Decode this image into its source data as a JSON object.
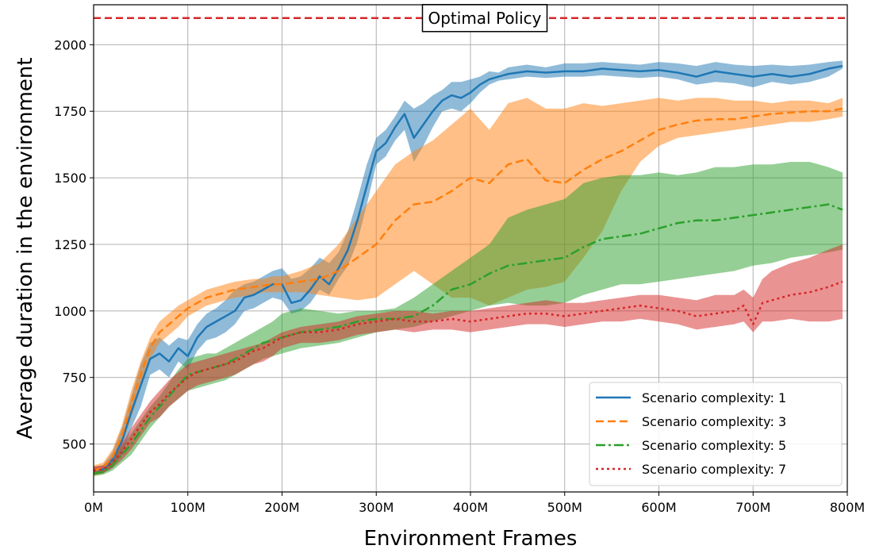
{
  "chart_data": {
    "type": "line",
    "title": "",
    "xlabel": "Environment Frames",
    "ylabel": "Average duration in the environment",
    "xlim": [
      0,
      800
    ],
    "ylim": [
      320,
      2150
    ],
    "x_ticks": [
      0,
      100,
      200,
      300,
      400,
      500,
      600,
      700,
      800
    ],
    "x_tick_labels": [
      "0M",
      "100M",
      "200M",
      "300M",
      "400M",
      "500M",
      "600M",
      "700M",
      "800M"
    ],
    "y_ticks": [
      500,
      750,
      1000,
      1250,
      1500,
      1750,
      2000
    ],
    "y_tick_labels": [
      "500",
      "750",
      "1000",
      "1250",
      "1500",
      "1750",
      "2000"
    ],
    "grid": true,
    "legend": "bottom-right",
    "reference_line": {
      "y": 2100,
      "label": "Optimal Policy",
      "color": "#d62728"
    },
    "series": [
      {
        "name": "Scenario complexity: 1",
        "color": "#1f77b4",
        "style": "solid",
        "x": [
          0,
          10,
          20,
          30,
          40,
          50,
          60,
          70,
          80,
          90,
          100,
          110,
          120,
          130,
          140,
          150,
          160,
          170,
          180,
          190,
          200,
          210,
          220,
          230,
          240,
          250,
          260,
          270,
          280,
          290,
          300,
          310,
          320,
          330,
          340,
          350,
          360,
          370,
          380,
          390,
          400,
          410,
          420,
          430,
          440,
          460,
          480,
          500,
          520,
          540,
          560,
          580,
          600,
          620,
          640,
          660,
          680,
          700,
          720,
          740,
          760,
          780,
          795
        ],
        "y": [
          400,
          405,
          440,
          510,
          620,
          720,
          820,
          840,
          810,
          860,
          830,
          900,
          940,
          960,
          980,
          1000,
          1050,
          1060,
          1080,
          1100,
          1100,
          1030,
          1040,
          1080,
          1130,
          1100,
          1160,
          1230,
          1340,
          1470,
          1600,
          1630,
          1690,
          1740,
          1650,
          1700,
          1750,
          1790,
          1810,
          1800,
          1820,
          1850,
          1870,
          1880,
          1890,
          1900,
          1895,
          1900,
          1900,
          1910,
          1905,
          1900,
          1905,
          1895,
          1880,
          1900,
          1890,
          1880,
          1890,
          1880,
          1890,
          1910,
          1920
        ],
        "upper": [
          415,
          420,
          470,
          560,
          680,
          800,
          880,
          900,
          870,
          900,
          890,
          950,
          990,
          1010,
          1040,
          1080,
          1100,
          1110,
          1130,
          1150,
          1160,
          1120,
          1130,
          1160,
          1200,
          1180,
          1220,
          1300,
          1420,
          1550,
          1650,
          1680,
          1730,
          1790,
          1760,
          1780,
          1810,
          1830,
          1860,
          1860,
          1870,
          1880,
          1900,
          1895,
          1915,
          1925,
          1915,
          1930,
          1930,
          1935,
          1930,
          1925,
          1935,
          1930,
          1920,
          1935,
          1925,
          1920,
          1925,
          1920,
          1925,
          1935,
          1940
        ],
        "lower": [
          385,
          390,
          410,
          460,
          560,
          640,
          760,
          780,
          750,
          810,
          780,
          850,
          890,
          900,
          920,
          950,
          1000,
          1010,
          1030,
          1050,
          1040,
          990,
          1000,
          1030,
          1080,
          1060,
          1120,
          1170,
          1260,
          1400,
          1550,
          1580,
          1640,
          1680,
          1560,
          1620,
          1690,
          1750,
          1760,
          1750,
          1780,
          1820,
          1850,
          1865,
          1870,
          1880,
          1875,
          1880,
          1880,
          1885,
          1880,
          1875,
          1880,
          1870,
          1850,
          1860,
          1855,
          1840,
          1860,
          1850,
          1860,
          1880,
          1910
        ]
      },
      {
        "name": "Scenario complexity: 3",
        "color": "#ff7f0e",
        "style": "dashed",
        "x": [
          0,
          10,
          20,
          30,
          40,
          50,
          60,
          70,
          80,
          90,
          100,
          110,
          120,
          130,
          140,
          150,
          160,
          170,
          180,
          190,
          200,
          220,
          240,
          260,
          280,
          300,
          320,
          340,
          360,
          380,
          400,
          420,
          440,
          460,
          480,
          500,
          520,
          540,
          560,
          580,
          600,
          620,
          640,
          660,
          680,
          700,
          720,
          740,
          760,
          780,
          795
        ],
        "y": [
          400,
          410,
          450,
          530,
          650,
          760,
          860,
          920,
          950,
          980,
          1010,
          1030,
          1050,
          1060,
          1070,
          1080,
          1085,
          1090,
          1095,
          1100,
          1100,
          1110,
          1120,
          1150,
          1200,
          1250,
          1340,
          1400,
          1410,
          1450,
          1500,
          1480,
          1550,
          1570,
          1490,
          1480,
          1530,
          1570,
          1600,
          1640,
          1680,
          1700,
          1715,
          1720,
          1720,
          1730,
          1740,
          1745,
          1750,
          1750,
          1760
        ],
        "upper": [
          420,
          430,
          480,
          570,
          700,
          810,
          900,
          960,
          990,
          1020,
          1040,
          1060,
          1080,
          1090,
          1100,
          1110,
          1115,
          1120,
          1120,
          1130,
          1130,
          1150,
          1180,
          1250,
          1350,
          1450,
          1550,
          1600,
          1640,
          1700,
          1760,
          1680,
          1780,
          1800,
          1760,
          1760,
          1780,
          1770,
          1780,
          1790,
          1800,
          1790,
          1800,
          1800,
          1790,
          1790,
          1780,
          1790,
          1790,
          1780,
          1800
        ],
        "lower": [
          380,
          390,
          420,
          490,
          600,
          710,
          820,
          880,
          910,
          940,
          980,
          1000,
          1020,
          1030,
          1040,
          1050,
          1055,
          1060,
          1070,
          1070,
          1070,
          1070,
          1060,
          1050,
          1040,
          1050,
          1100,
          1150,
          1100,
          1050,
          1050,
          1020,
          1050,
          1080,
          1090,
          1110,
          1200,
          1300,
          1450,
          1560,
          1620,
          1650,
          1660,
          1670,
          1680,
          1690,
          1700,
          1710,
          1710,
          1720,
          1730
        ]
      },
      {
        "name": "Scenario complexity: 5",
        "color": "#2ca02c",
        "style": "dashdot",
        "x": [
          0,
          10,
          20,
          30,
          40,
          50,
          60,
          70,
          80,
          90,
          100,
          110,
          120,
          130,
          140,
          150,
          160,
          170,
          180,
          190,
          200,
          220,
          240,
          260,
          280,
          300,
          320,
          340,
          360,
          380,
          400,
          420,
          440,
          460,
          480,
          500,
          520,
          540,
          560,
          580,
          600,
          620,
          640,
          660,
          680,
          700,
          720,
          740,
          760,
          780,
          795
        ],
        "y": [
          390,
          395,
          420,
          460,
          500,
          550,
          600,
          640,
          680,
          720,
          760,
          770,
          780,
          790,
          800,
          820,
          840,
          860,
          880,
          890,
          900,
          920,
          930,
          940,
          960,
          970,
          970,
          980,
          1020,
          1080,
          1100,
          1140,
          1170,
          1180,
          1190,
          1200,
          1240,
          1270,
          1280,
          1290,
          1310,
          1330,
          1340,
          1340,
          1350,
          1360,
          1370,
          1380,
          1390,
          1400,
          1380
        ],
        "upper": [
          400,
          405,
          440,
          490,
          540,
          590,
          640,
          680,
          730,
          780,
          820,
          830,
          840,
          840,
          860,
          880,
          900,
          920,
          940,
          960,
          990,
          1010,
          1000,
          990,
          1000,
          1000,
          1010,
          1050,
          1100,
          1150,
          1200,
          1250,
          1350,
          1380,
          1400,
          1420,
          1480,
          1500,
          1510,
          1510,
          1520,
          1510,
          1520,
          1540,
          1540,
          1550,
          1550,
          1560,
          1560,
          1540,
          1520
        ],
        "lower": [
          380,
          385,
          400,
          430,
          460,
          510,
          560,
          600,
          640,
          670,
          700,
          710,
          720,
          730,
          740,
          760,
          780,
          800,
          820,
          830,
          840,
          860,
          870,
          880,
          900,
          920,
          930,
          940,
          960,
          980,
          1000,
          1020,
          1030,
          1020,
          1020,
          1030,
          1060,
          1080,
          1100,
          1100,
          1110,
          1120,
          1130,
          1140,
          1150,
          1170,
          1180,
          1200,
          1210,
          1220,
          1230
        ]
      },
      {
        "name": "Scenario complexity: 7",
        "color": "#d62728",
        "style": "dotted",
        "x": [
          0,
          10,
          20,
          30,
          40,
          50,
          60,
          70,
          80,
          90,
          100,
          110,
          120,
          130,
          140,
          150,
          160,
          170,
          180,
          190,
          200,
          220,
          240,
          260,
          280,
          300,
          320,
          340,
          360,
          380,
          400,
          420,
          440,
          460,
          480,
          500,
          520,
          540,
          560,
          580,
          600,
          620,
          640,
          660,
          680,
          690,
          700,
          710,
          720,
          740,
          760,
          780,
          795
        ],
        "y": [
          400,
          405,
          430,
          470,
          520,
          570,
          620,
          650,
          690,
          720,
          750,
          770,
          780,
          790,
          800,
          810,
          830,
          850,
          860,
          880,
          900,
          920,
          920,
          930,
          950,
          960,
          970,
          960,
          960,
          970,
          960,
          970,
          980,
          990,
          990,
          980,
          990,
          1000,
          1010,
          1020,
          1010,
          1000,
          980,
          990,
          1000,
          1020,
          950,
          1030,
          1040,
          1060,
          1070,
          1090,
          1110
        ],
        "upper": [
          415,
          420,
          450,
          500,
          560,
          610,
          660,
          700,
          740,
          770,
          800,
          810,
          820,
          830,
          840,
          850,
          860,
          870,
          880,
          900,
          920,
          940,
          950,
          960,
          980,
          990,
          1000,
          1000,
          990,
          1000,
          1000,
          1010,
          1020,
          1030,
          1040,
          1030,
          1030,
          1040,
          1050,
          1060,
          1060,
          1050,
          1040,
          1060,
          1060,
          1080,
          1050,
          1120,
          1150,
          1180,
          1200,
          1230,
          1250
        ],
        "lower": [
          385,
          390,
          410,
          440,
          480,
          530,
          580,
          600,
          640,
          670,
          700,
          720,
          730,
          740,
          750,
          760,
          780,
          800,
          810,
          830,
          860,
          880,
          880,
          890,
          910,
          920,
          930,
          920,
          930,
          930,
          920,
          930,
          940,
          950,
          950,
          940,
          950,
          960,
          960,
          970,
          960,
          950,
          930,
          940,
          950,
          960,
          920,
          960,
          960,
          970,
          960,
          960,
          970
        ]
      }
    ]
  }
}
